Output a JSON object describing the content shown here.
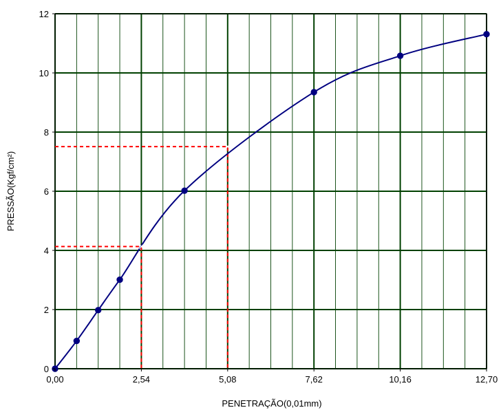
{
  "chart_data": {
    "type": "line",
    "title": "",
    "xlabel": "PENETRAÇÃO(0,01mm)",
    "ylabel": "PRESSÃO(Kgf/cm²)",
    "xlim": [
      0,
      12.7
    ],
    "ylim": [
      0,
      12
    ],
    "x_ticks": [
      0,
      2.54,
      5.08,
      7.62,
      10.16,
      12.7
    ],
    "x_tick_labels": [
      "0,00",
      "2,54",
      "5,08",
      "7,62",
      "10,16",
      "12,70"
    ],
    "y_ticks": [
      0,
      2,
      4,
      6,
      8,
      10,
      12
    ],
    "y_tick_labels": [
      "0",
      "2",
      "4",
      "6",
      "8",
      "10",
      "12"
    ],
    "minor_x_step": 0.635,
    "grid": true,
    "series": [
      {
        "x": [
          0,
          0.635,
          1.27,
          1.905,
          3.81,
          7.62,
          10.16,
          12.7
        ],
        "y": [
          0,
          0.94,
          1.98,
          3.01,
          6.02,
          9.35,
          10.58,
          11.31
        ],
        "color": "#000080"
      }
    ],
    "interpolated": [
      {
        "x": 2.54,
        "y": 4.13
      },
      {
        "x": 5.08,
        "y": 7.51
      }
    ],
    "colors": {
      "line": "#000080",
      "markers": "#000080",
      "major_grid": "#004000",
      "minor_grid": "#004000",
      "reference_lines": "#ff0000",
      "frame": "#000000"
    }
  }
}
